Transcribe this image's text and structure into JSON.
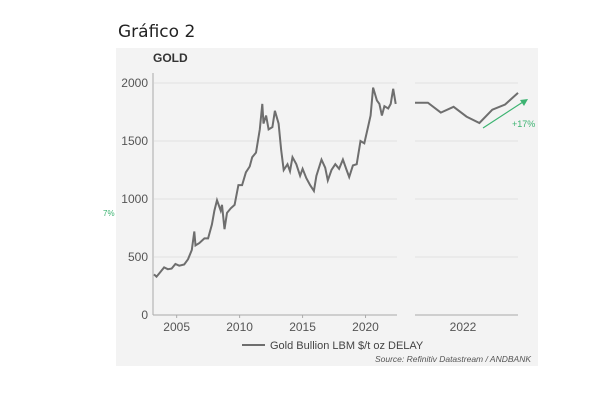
{
  "heading": "Gráfico 2",
  "chart_data": {
    "type": "line",
    "title": "GOLD",
    "ylim": [
      0,
      2000
    ],
    "yticks": [
      "0",
      "500",
      "1000",
      "1500",
      "2000"
    ],
    "grid": true,
    "left_panel": {
      "xticks": [
        "2005",
        "2010",
        "2015",
        "2020"
      ],
      "x": [
        2003.2,
        2003.4,
        2003.7,
        2004.0,
        2004.3,
        2004.6,
        2004.9,
        2005.2,
        2005.6,
        2005.9,
        2006.2,
        2006.4,
        2006.5,
        2006.8,
        2007.2,
        2007.5,
        2007.8,
        2008.0,
        2008.2,
        2008.5,
        2008.6,
        2008.8,
        2009.0,
        2009.3,
        2009.6,
        2009.9,
        2010.2,
        2010.5,
        2010.8,
        2011.0,
        2011.3,
        2011.6,
        2011.8,
        2011.9,
        2012.1,
        2012.3,
        2012.6,
        2012.8,
        2013.1,
        2013.3,
        2013.5,
        2013.8,
        2014.0,
        2014.2,
        2014.5,
        2014.8,
        2015.0,
        2015.3,
        2015.6,
        2015.9,
        2016.1,
        2016.5,
        2016.8,
        2017.0,
        2017.3,
        2017.6,
        2017.9,
        2018.2,
        2018.5,
        2018.7,
        2019.0,
        2019.3,
        2019.6,
        2019.9,
        2020.2,
        2020.4,
        2020.6,
        2020.9,
        2021.1,
        2021.3,
        2021.5,
        2021.8,
        2022.0,
        2022.2,
        2022.4
      ],
      "values": [
        350,
        330,
        370,
        410,
        395,
        400,
        440,
        425,
        435,
        480,
        560,
        720,
        600,
        620,
        660,
        660,
        780,
        900,
        990,
        900,
        950,
        740,
        880,
        920,
        950,
        1120,
        1120,
        1230,
        1280,
        1360,
        1400,
        1600,
        1820,
        1650,
        1720,
        1600,
        1620,
        1760,
        1650,
        1420,
        1250,
        1300,
        1240,
        1360,
        1300,
        1200,
        1260,
        1180,
        1120,
        1070,
        1200,
        1340,
        1270,
        1160,
        1250,
        1300,
        1260,
        1340,
        1250,
        1190,
        1290,
        1300,
        1500,
        1480,
        1620,
        1720,
        1960,
        1850,
        1820,
        1720,
        1800,
        1780,
        1820,
        1950,
        1820
      ]
    },
    "right_panel": {
      "xticks": [
        "2022"
      ],
      "values": [
        1830,
        1830,
        1745,
        1795,
        1710,
        1655,
        1770,
        1815,
        1915
      ],
      "annotation": "+17%"
    },
    "left_annotation": "7%",
    "legend": "Gold Bullion LBM $/t oz DELAY",
    "legend_position": "bottom",
    "source": "Source: Refinitiv Datastream / ANDBANK",
    "colors": {
      "line": "#6e6e6e",
      "annotation": "#3cb371",
      "panel": "#f3f3f3"
    }
  }
}
